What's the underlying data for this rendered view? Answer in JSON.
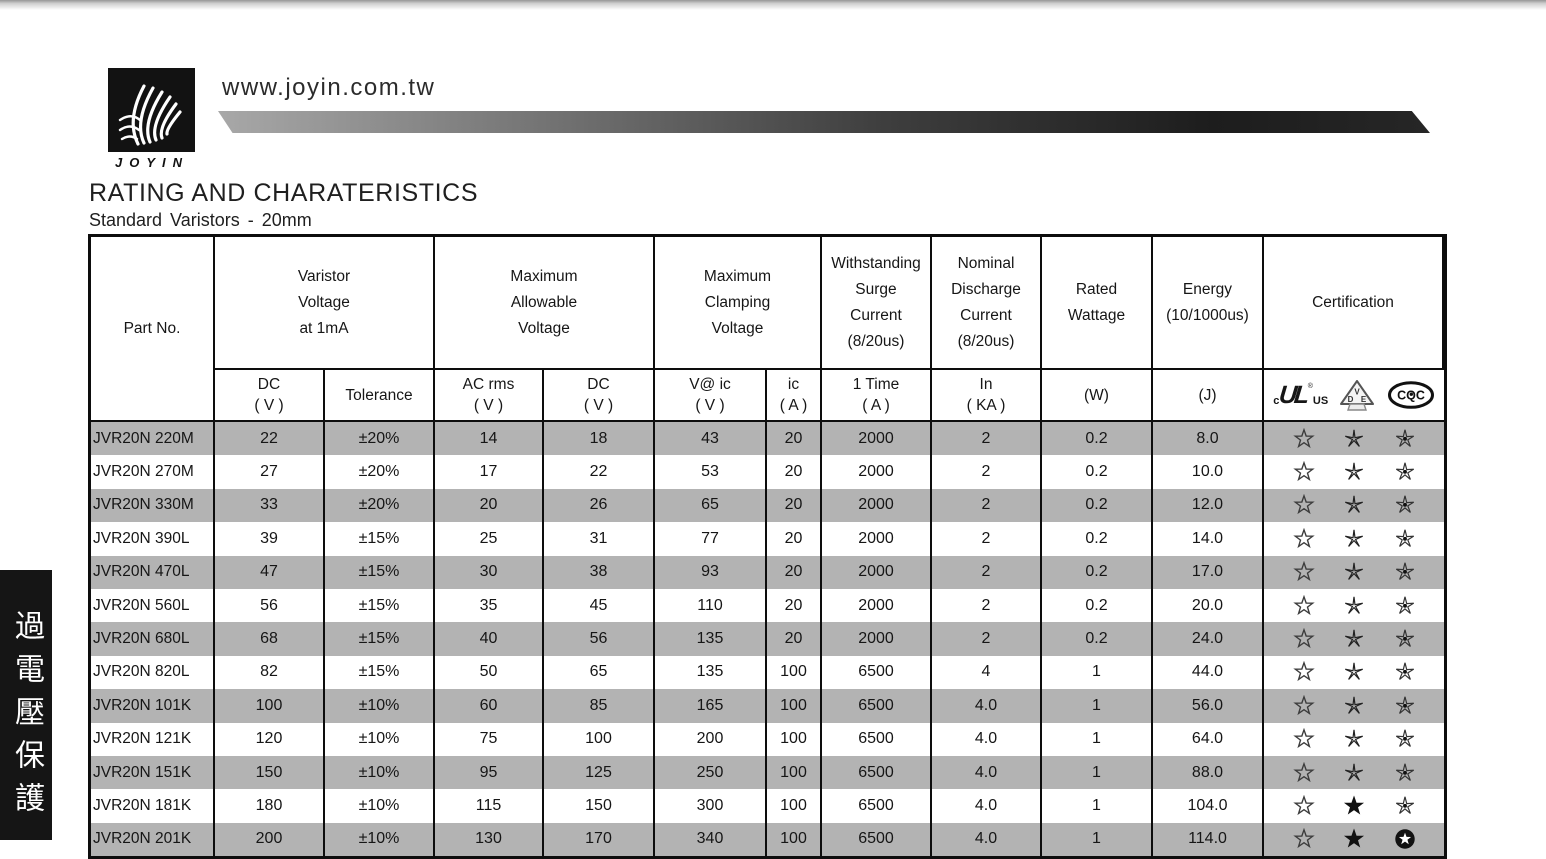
{
  "page": {
    "site_url": "www.joyin.com.tw",
    "brand": "JOYIN",
    "title": "RATING AND CHARATERISTICS",
    "subtitle": "Standard Varistors - 20mm",
    "side_tab_label": "過電壓保護"
  },
  "table": {
    "part_no_header": "Part No.",
    "groups": [
      {
        "id": "varistor-voltage",
        "lines": [
          "Varistor",
          "Voltage",
          "at 1mA"
        ],
        "cols": 2
      },
      {
        "id": "max-allowable-voltage",
        "lines": [
          "Maximum",
          "Allowable",
          "Voltage"
        ],
        "cols": 2
      },
      {
        "id": "max-clamping-voltage",
        "lines": [
          "Maximum",
          "Clamping",
          "Voltage"
        ],
        "cols": 2
      },
      {
        "id": "withstanding-surge-current",
        "lines": [
          "Withstanding",
          "Surge",
          "Current",
          "(8/20us)"
        ],
        "cols": 1
      },
      {
        "id": "nominal-discharge-current",
        "lines": [
          "Nominal",
          "Discharge",
          "Current",
          "(8/20us)"
        ],
        "cols": 1
      },
      {
        "id": "rated-wattage",
        "lines": [
          "Rated",
          "Wattage"
        ],
        "cols": 1
      },
      {
        "id": "energy",
        "lines": [
          "Energy",
          "(10/1000us)"
        ],
        "cols": 1
      },
      {
        "id": "certification",
        "lines": [
          "Certification"
        ],
        "cols": 1
      }
    ],
    "subheaders": [
      {
        "id": "dc-v",
        "lines": [
          "DC",
          "( V )"
        ]
      },
      {
        "id": "tolerance",
        "lines": [
          "Tolerance"
        ]
      },
      {
        "id": "ac-rms-v",
        "lines": [
          "AC rms",
          "( V )"
        ]
      },
      {
        "id": "dc-v-2",
        "lines": [
          "DC",
          "( V )"
        ]
      },
      {
        "id": "v-at-ic",
        "lines": [
          "V@ ic",
          "( V )"
        ]
      },
      {
        "id": "ic-a",
        "lines": [
          "ic",
          "( A )"
        ]
      },
      {
        "id": "one-time-a",
        "lines": [
          "1 Time",
          "( A )"
        ]
      },
      {
        "id": "in-ka",
        "lines": [
          "In",
          "( KA )"
        ]
      },
      {
        "id": "w",
        "lines": [
          "(W)"
        ]
      },
      {
        "id": "j",
        "lines": [
          "(J)"
        ]
      }
    ],
    "cert_marks": [
      "cULus",
      "VDE",
      "CQC"
    ],
    "rows": [
      {
        "part": "JVR20N 220M",
        "values": [
          "22",
          "±20%",
          "14",
          "18",
          "43",
          "20",
          "2000",
          "2",
          "0.2",
          "8.0"
        ],
        "certs": [
          "star-outline",
          "star-thin",
          "star-dot"
        ]
      },
      {
        "part": "JVR20N 270M",
        "values": [
          "27",
          "±20%",
          "17",
          "22",
          "53",
          "20",
          "2000",
          "2",
          "0.2",
          "10.0"
        ],
        "certs": [
          "star-outline",
          "star-thin",
          "star-dot"
        ]
      },
      {
        "part": "JVR20N 330M",
        "values": [
          "33",
          "±20%",
          "20",
          "26",
          "65",
          "20",
          "2000",
          "2",
          "0.2",
          "12.0"
        ],
        "certs": [
          "star-outline",
          "star-thin",
          "star-dot"
        ]
      },
      {
        "part": "JVR20N 390L",
        "values": [
          "39",
          "±15%",
          "25",
          "31",
          "77",
          "20",
          "2000",
          "2",
          "0.2",
          "14.0"
        ],
        "certs": [
          "star-outline",
          "star-thin",
          "star-dot"
        ]
      },
      {
        "part": "JVR20N 470L",
        "values": [
          "47",
          "±15%",
          "30",
          "38",
          "93",
          "20",
          "2000",
          "2",
          "0.2",
          "17.0"
        ],
        "certs": [
          "star-outline",
          "star-thin",
          "star-dot"
        ]
      },
      {
        "part": "JVR20N 560L",
        "values": [
          "56",
          "±15%",
          "35",
          "45",
          "110",
          "20",
          "2000",
          "2",
          "0.2",
          "20.0"
        ],
        "certs": [
          "star-outline",
          "star-thin",
          "star-dot"
        ]
      },
      {
        "part": "JVR20N 680L",
        "values": [
          "68",
          "±15%",
          "40",
          "56",
          "135",
          "20",
          "2000",
          "2",
          "0.2",
          "24.0"
        ],
        "certs": [
          "star-outline",
          "star-thin",
          "star-dot"
        ]
      },
      {
        "part": "JVR20N 820L",
        "values": [
          "82",
          "±15%",
          "50",
          "65",
          "135",
          "100",
          "6500",
          "4",
          "1",
          "44.0"
        ],
        "certs": [
          "star-outline",
          "star-thin",
          "star-dot"
        ]
      },
      {
        "part": "JVR20N 101K",
        "values": [
          "100",
          "±10%",
          "60",
          "85",
          "165",
          "100",
          "6500",
          "4.0",
          "1",
          "56.0"
        ],
        "certs": [
          "star-outline",
          "star-thin",
          "star-dot"
        ]
      },
      {
        "part": "JVR20N 121K",
        "values": [
          "120",
          "±10%",
          "75",
          "100",
          "200",
          "100",
          "6500",
          "4.0",
          "1",
          "64.0"
        ],
        "certs": [
          "star-outline",
          "star-thin",
          "star-dot"
        ]
      },
      {
        "part": "JVR20N 151K",
        "values": [
          "150",
          "±10%",
          "95",
          "125",
          "250",
          "100",
          "6500",
          "4.0",
          "1",
          "88.0"
        ],
        "certs": [
          "star-outline",
          "star-thin",
          "star-dot"
        ]
      },
      {
        "part": "JVR20N 181K",
        "values": [
          "180",
          "±10%",
          "115",
          "150",
          "300",
          "100",
          "6500",
          "4.0",
          "1",
          "104.0"
        ],
        "certs": [
          "star-outline",
          "star-solid",
          "star-dot"
        ]
      },
      {
        "part": "JVR20N 201K",
        "values": [
          "200",
          "±10%",
          "130",
          "170",
          "340",
          "100",
          "6500",
          "4.0",
          "1",
          "114.0"
        ],
        "certs": [
          "star-outline",
          "star-solid",
          "star-circle"
        ]
      }
    ]
  }
}
